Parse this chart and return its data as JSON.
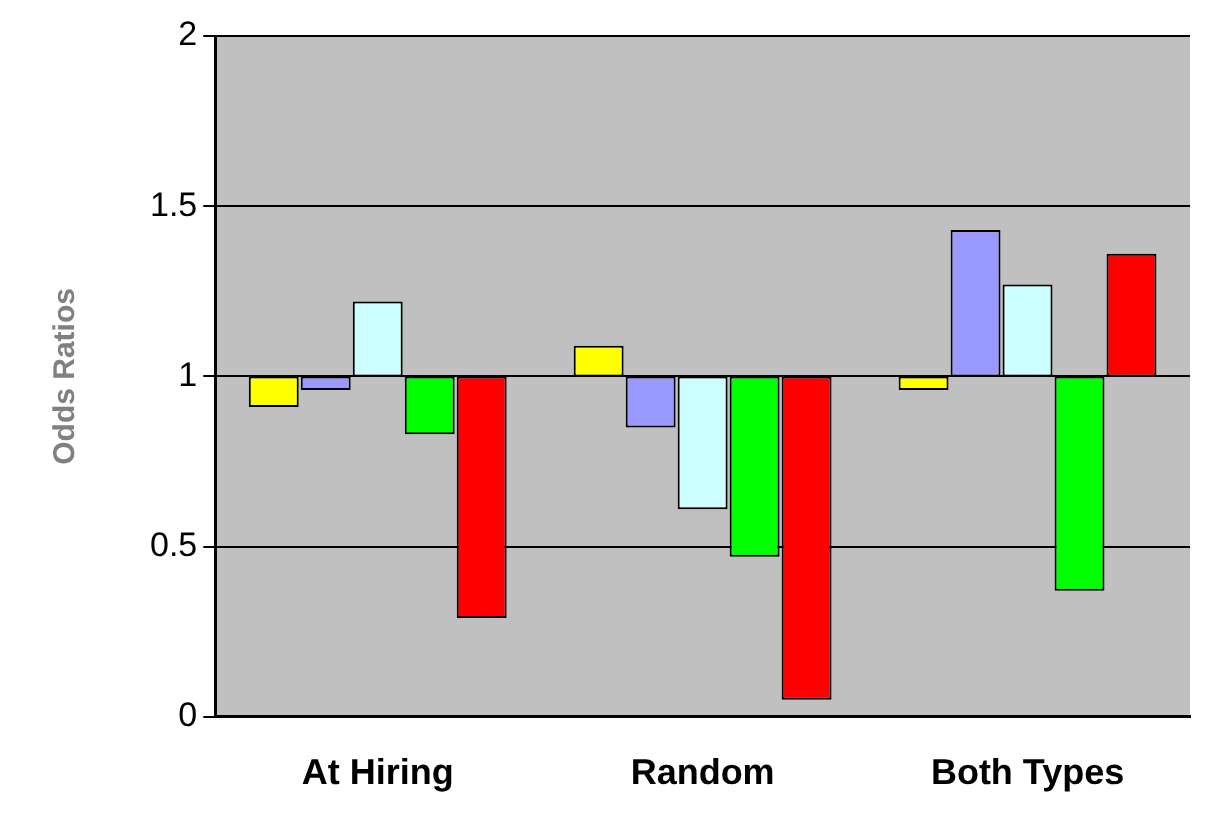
{
  "chart_data": {
    "type": "bar",
    "ylabel": "Odds Ratios",
    "categories": [
      "At Hiring",
      "Random",
      "Both Types"
    ],
    "series": [
      {
        "color": "#ffff00",
        "values": [
          -0.09,
          0.09,
          -0.04
        ],
        "base": [
          1,
          1,
          1
        ]
      },
      {
        "color": "#9999ff",
        "values": [
          -0.04,
          -0.15,
          0.43
        ],
        "base": [
          1,
          1,
          1
        ]
      },
      {
        "color": "#ccffff",
        "values": [
          0.22,
          -0.39,
          0.27
        ],
        "base": [
          1,
          1,
          1
        ]
      },
      {
        "color": "#00ff00",
        "values": [
          -0.17,
          -0.53,
          -0.63
        ],
        "base": [
          1,
          1,
          1
        ]
      },
      {
        "color": "#ff0000",
        "values": [
          -0.71,
          -0.95,
          0.36
        ],
        "base": [
          1,
          1,
          1
        ]
      }
    ],
    "ylim": [
      0,
      2
    ],
    "yticks": [
      0,
      0.5,
      1,
      1.5,
      2
    ],
    "grid": "y",
    "legend": false
  }
}
